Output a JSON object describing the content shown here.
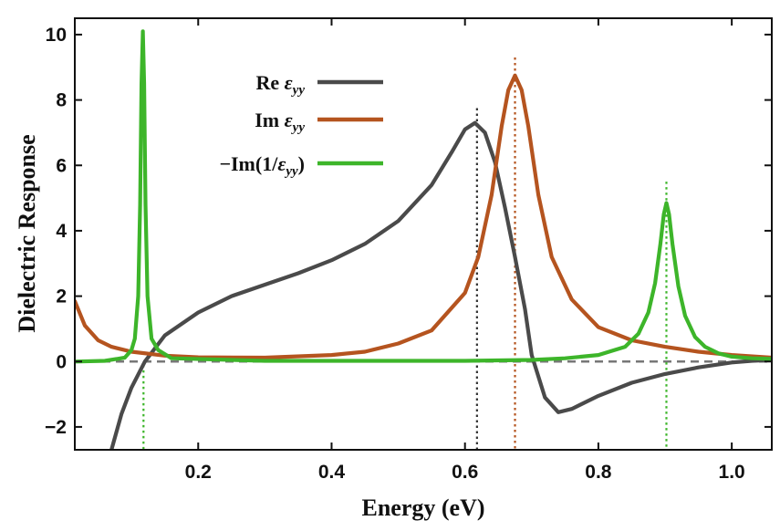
{
  "chart_data": {
    "type": "line",
    "title": "",
    "xlabel": "Energy (eV)",
    "ylabel": "Dielectric Response",
    "xlim": [
      0.015,
      1.06
    ],
    "ylim": [
      -2.7,
      10.5
    ],
    "xticks": [
      0.2,
      0.4,
      0.6,
      0.8,
      1.0
    ],
    "xtick_labels": [
      "0.2",
      "0.4",
      "0.6",
      "0.8",
      "1.0"
    ],
    "yticks": [
      -2,
      0,
      2,
      4,
      6,
      8,
      10
    ],
    "ytick_labels": [
      "−2",
      "0",
      "2",
      "4",
      "6",
      "8",
      "10"
    ],
    "grid": false,
    "legend_position": "top-left",
    "zero_line": {
      "y": 0,
      "color": "#777777",
      "style": "dashed"
    },
    "series": [
      {
        "name": "Re εyy",
        "label_prefix": "Re ",
        "label_symbol": "ε",
        "label_sub": "yy",
        "label_suffix": "",
        "color": "#4a4a4a",
        "x": [
          0.07,
          0.085,
          0.1,
          0.12,
          0.15,
          0.2,
          0.25,
          0.3,
          0.35,
          0.4,
          0.45,
          0.5,
          0.55,
          0.58,
          0.6,
          0.615,
          0.63,
          0.645,
          0.66,
          0.675,
          0.69,
          0.7,
          0.72,
          0.74,
          0.76,
          0.8,
          0.85,
          0.9,
          0.95,
          1.0,
          1.03,
          1.06
        ],
        "y": [
          -2.7,
          -1.6,
          -0.8,
          0.0,
          0.8,
          1.5,
          2.0,
          2.35,
          2.7,
          3.1,
          3.6,
          4.3,
          5.4,
          6.4,
          7.1,
          7.3,
          7.0,
          6.1,
          4.7,
          3.2,
          1.6,
          0.2,
          -1.1,
          -1.55,
          -1.45,
          -1.05,
          -0.65,
          -0.38,
          -0.18,
          -0.03,
          0.02,
          0.05
        ]
      },
      {
        "name": "Im εyy",
        "label_prefix": "Im ",
        "label_symbol": "ε",
        "label_sub": "yy",
        "label_suffix": "",
        "color": "#b5541f",
        "x": [
          0.015,
          0.03,
          0.05,
          0.07,
          0.1,
          0.15,
          0.2,
          0.3,
          0.4,
          0.45,
          0.5,
          0.55,
          0.6,
          0.62,
          0.64,
          0.655,
          0.665,
          0.675,
          0.685,
          0.695,
          0.71,
          0.73,
          0.76,
          0.8,
          0.85,
          0.9,
          0.95,
          1.0,
          1.06
        ],
        "y": [
          1.85,
          1.1,
          0.65,
          0.45,
          0.3,
          0.18,
          0.13,
          0.12,
          0.2,
          0.3,
          0.55,
          0.95,
          2.1,
          3.2,
          5.1,
          7.2,
          8.3,
          8.75,
          8.3,
          7.2,
          5.1,
          3.2,
          1.9,
          1.05,
          0.65,
          0.45,
          0.3,
          0.2,
          0.12
        ]
      },
      {
        "name": "−Im(1/εyy)",
        "label_prefix": "−Im(1/",
        "label_symbol": "ε",
        "label_sub": "yy",
        "label_suffix": ")",
        "color": "#3db52a",
        "x": [
          0.015,
          0.06,
          0.09,
          0.1,
          0.105,
          0.11,
          0.113,
          0.115,
          0.117,
          0.119,
          0.121,
          0.124,
          0.13,
          0.14,
          0.16,
          0.3,
          0.6,
          0.7,
          0.75,
          0.8,
          0.84,
          0.86,
          0.875,
          0.885,
          0.893,
          0.898,
          0.902,
          0.906,
          0.911,
          0.92,
          0.93,
          0.945,
          0.96,
          0.98,
          1.0,
          1.03,
          1.06
        ],
        "y": [
          0.0,
          0.02,
          0.12,
          0.35,
          0.7,
          2.0,
          4.8,
          8.5,
          10.1,
          8.5,
          4.8,
          2.0,
          0.7,
          0.35,
          0.1,
          0.02,
          0.02,
          0.05,
          0.1,
          0.2,
          0.45,
          0.85,
          1.5,
          2.4,
          3.6,
          4.5,
          4.85,
          4.5,
          3.6,
          2.3,
          1.4,
          0.75,
          0.45,
          0.25,
          0.15,
          0.1,
          0.08
        ]
      }
    ],
    "peak_markers": [
      {
        "x": 0.618,
        "y_top": 7.75,
        "color": "#333333"
      },
      {
        "x": 0.675,
        "y_top": 9.3,
        "color": "#b5541f"
      },
      {
        "x": 0.118,
        "y_top": -0.1,
        "color": "#3db52a"
      },
      {
        "x": 0.902,
        "y_top": 5.5,
        "color": "#3db52a"
      }
    ]
  }
}
